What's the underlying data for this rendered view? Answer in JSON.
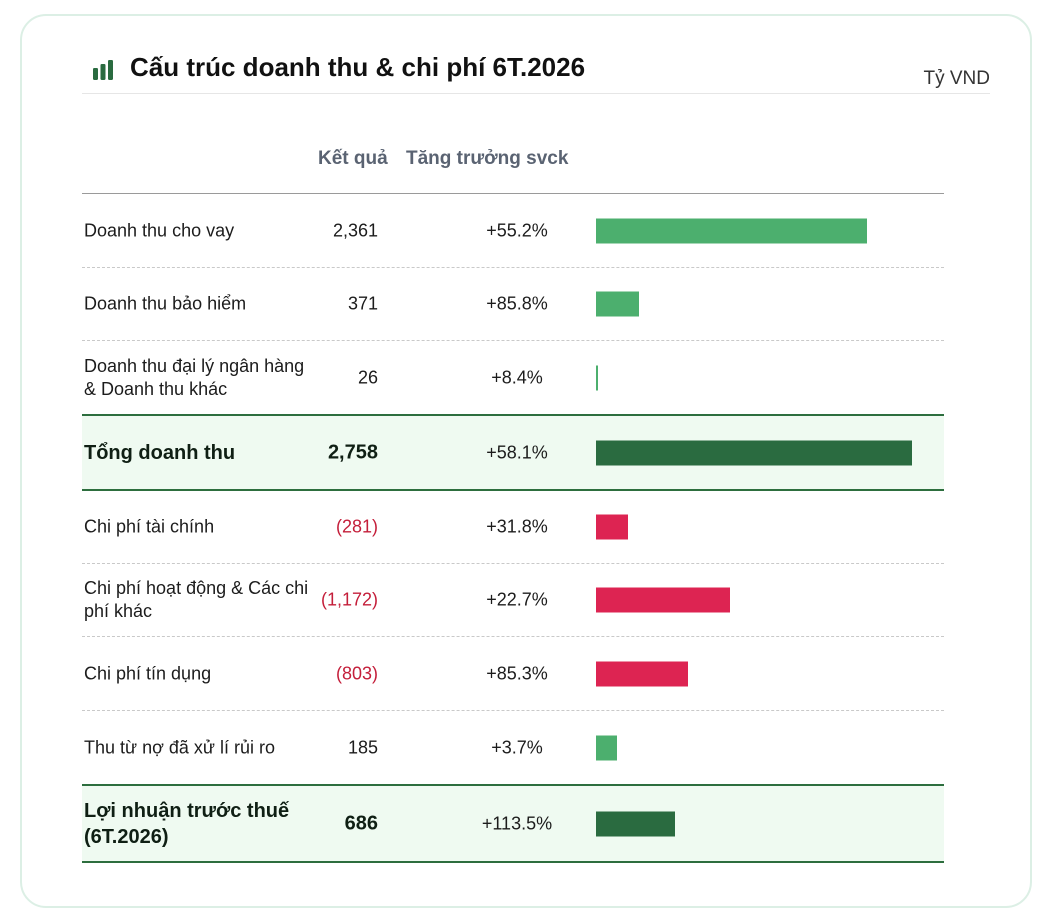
{
  "title": "Cấu trúc doanh thu & chi phí 6T.2026",
  "unit": "Tỷ VND",
  "columns": {
    "result": "Kết quả",
    "growth": "Tăng trưởng svck"
  },
  "colors": {
    "revenue": "#4caf6e",
    "total": "#2a6b40",
    "expense": "#dd2452"
  },
  "chart_data": {
    "type": "bar",
    "orientation": "horizontal",
    "unit": "Tỷ VND",
    "categories": [
      "Doanh thu cho vay",
      "Doanh thu bảo hiểm",
      "Doanh thu đại lý ngân hàng & Doanh thu khác",
      "Tổng doanh thu",
      "Chi phí tài chính",
      "Chi phí hoạt động & Các chi phí khác",
      "Chi phí tín dụng",
      "Thu từ nợ đã xử lí rủi ro",
      "Lợi nhuận trước thuế (6T.2026)"
    ],
    "rows": [
      {
        "label": "Doanh thu cho vay",
        "value": 2361,
        "display": "2,361",
        "growth": "+55.2%",
        "kind": "revenue"
      },
      {
        "label": "Doanh thu bảo hiểm",
        "value": 371,
        "display": "371",
        "growth": "+85.8%",
        "kind": "revenue"
      },
      {
        "label": "Doanh thu đại lý ngân hàng & Doanh thu khác",
        "value": 26,
        "display": "26",
        "growth": "+8.4%",
        "kind": "revenue"
      },
      {
        "label": "Tổng doanh thu",
        "value": 2758,
        "display": "2,758",
        "growth": "+58.1%",
        "kind": "total"
      },
      {
        "label": "Chi phí tài chính",
        "value": -281,
        "display": "(281)",
        "growth": "+31.8%",
        "kind": "expense"
      },
      {
        "label": "Chi phí hoạt động & Các chi phí khác",
        "value": -1172,
        "display": "(1,172)",
        "growth": "+22.7%",
        "kind": "expense"
      },
      {
        "label": "Chi phí tín dụng",
        "value": -803,
        "display": "(803)",
        "growth": "+85.3%",
        "kind": "expense"
      },
      {
        "label": "Thu từ nợ đã xử lí rủi ro",
        "value": 185,
        "display": "185",
        "growth": "+3.7%",
        "kind": "revenue"
      },
      {
        "label": "Lợi nhuận trước thuế (6T.2026)",
        "value": 686,
        "display": "686",
        "growth": "+113.5%",
        "kind": "total"
      }
    ],
    "max_abs_value": 2758,
    "grid": false,
    "legend": "none"
  }
}
